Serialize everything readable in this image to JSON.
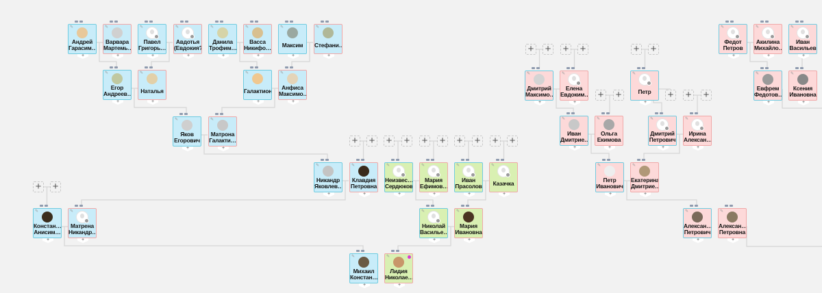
{
  "colors": {
    "male_border": "#6fcbe0",
    "female_border": "#f0a8a8",
    "bg_blue": "#c8ecf9",
    "bg_pink": "#fdd9d9",
    "bg_green": "#d9f0b2",
    "marker": "#d63ad6"
  },
  "add_label": "+",
  "people": [
    {
      "l1": "Андрей",
      "l2": "Гарасим…",
      "sex": "m",
      "bg": "blue",
      "av": "#e8c89a"
    },
    {
      "l1": "Варвара",
      "l2": "Мартемь…",
      "sex": "f",
      "bg": "blue",
      "av": "#d0d0d0"
    },
    {
      "l1": "Павел",
      "l2": "Григорь…",
      "sex": "m",
      "bg": "blue",
      "av": "silhouette"
    },
    {
      "l1": "Авдотья",
      "l2": "(Евдокия?",
      "sex": "f",
      "bg": "blue",
      "av": "silhouette"
    },
    {
      "l1": "Данила",
      "l2": "Трофим…",
      "sex": "m",
      "bg": "blue",
      "av": "#d6d4a8"
    },
    {
      "l1": "Васса",
      "l2": "Никифо…",
      "sex": "f",
      "bg": "blue",
      "av": "#d8c090"
    },
    {
      "l1": "Максим",
      "l2": "",
      "sex": "m",
      "bg": "blue",
      "av": "#9aa8a0"
    },
    {
      "l1": "Стефани…",
      "l2": "",
      "sex": "f",
      "bg": "blue",
      "av": "#b0b898"
    },
    {
      "l1": "Егор",
      "l2": "Андреев…",
      "sex": "m",
      "bg": "blue",
      "av": "#c0c8a0"
    },
    {
      "l1": "Наталья",
      "l2": "",
      "sex": "f",
      "bg": "blue",
      "av": "#e2d0a8"
    },
    {
      "l1": "Галактион",
      "l2": "",
      "sex": "m",
      "bg": "blue",
      "av": "#f0c890"
    },
    {
      "l1": "Анфиса",
      "l2": "Максимо…",
      "sex": "f",
      "bg": "blue",
      "av": "#e4d4b8"
    },
    {
      "l1": "Яков",
      "l2": "Егорович",
      "sex": "m",
      "bg": "blue",
      "av": "#cfcfcf"
    },
    {
      "l1": "Матрона",
      "l2": "Галакти…",
      "sex": "f",
      "bg": "blue",
      "av": "#c8c8c8"
    },
    {
      "l1": "Никандр",
      "l2": "Яковлев…",
      "sex": "m",
      "bg": "blue",
      "av": "#c4c4c4"
    },
    {
      "l1": "Клавдия",
      "l2": "Петровна",
      "sex": "f",
      "bg": "blue",
      "av": "#3a2a1a"
    },
    {
      "l1": "Неизвес…",
      "l2": "Сердюков",
      "sex": "m",
      "bg": "green",
      "av": "silhouette"
    },
    {
      "l1": "Мария",
      "l2": "Ефимов…",
      "sex": "f",
      "bg": "green",
      "av": "silhouette"
    },
    {
      "l1": "Иван",
      "l2": "Прасолов",
      "sex": "m",
      "bg": "green",
      "av": "silhouette"
    },
    {
      "l1": "Казачка",
      "l2": "",
      "sex": "f",
      "bg": "green",
      "av": "silhouette"
    },
    {
      "l1": "Констан…",
      "l2": "Анисим…",
      "sex": "m",
      "bg": "blue",
      "av": "#3b2e1e"
    },
    {
      "l1": "Матрена",
      "l2": "Никандр…",
      "sex": "f",
      "bg": "blue",
      "av": "silhouette"
    },
    {
      "l1": "Николай",
      "l2": "Василье…",
      "sex": "m",
      "bg": "green",
      "av": "silhouette"
    },
    {
      "l1": "Мария",
      "l2": "Ивановна",
      "sex": "f",
      "bg": "green",
      "av": "#4a3422"
    },
    {
      "l1": "Михаил",
      "l2": "Констан…",
      "sex": "m",
      "bg": "blue",
      "av": "#6a5a44"
    },
    {
      "l1": "Лидия",
      "l2": "Николае…",
      "sex": "f",
      "bg": "green",
      "av": "#c8966a",
      "marker": true
    },
    {
      "l1": "Дмитрий",
      "l2": "Максимо…",
      "sex": "m",
      "bg": "pink",
      "av": "#d4d4d4"
    },
    {
      "l1": "Елена",
      "l2": "Евдоким…",
      "sex": "f",
      "bg": "pink",
      "av": "silhouette"
    },
    {
      "l1": "Петр",
      "l2": "",
      "sex": "m",
      "bg": "pink",
      "av": "silhouette"
    },
    {
      "l1": "Иван",
      "l2": "Дмитрие…",
      "sex": "m",
      "bg": "pink",
      "av": "#c8c8c8"
    },
    {
      "l1": "Ольга",
      "l2": "Екимова",
      "sex": "f",
      "bg": "pink",
      "av": "#a8a8a8"
    },
    {
      "l1": "Дмитрий",
      "l2": "Петрович",
      "sex": "m",
      "bg": "pink",
      "av": "silhouette"
    },
    {
      "l1": "Ирина",
      "l2": "Алексан…",
      "sex": "f",
      "bg": "pink",
      "av": "silhouette"
    },
    {
      "l1": "Петр",
      "l2": "Иванович",
      "sex": "m",
      "bg": "pink",
      "av": "#eeeeee"
    },
    {
      "l1": "Екатерина",
      "l2": "Дмитрие…",
      "sex": "f",
      "bg": "pink",
      "av": "#b09878"
    },
    {
      "l1": "Федот",
      "l2": "Петров",
      "sex": "m",
      "bg": "pink",
      "av": "silhouette"
    },
    {
      "l1": "Акилина",
      "l2": "Михайло…",
      "sex": "f",
      "bg": "pink",
      "av": "silhouette"
    },
    {
      "l1": "Иван",
      "l2": "Васильев",
      "sex": "m",
      "bg": "pink",
      "av": "silhouette"
    },
    {
      "l1": "Евфрем",
      "l2": "Федотов…",
      "sex": "m",
      "bg": "pink",
      "av": "#9a9a9a"
    },
    {
      "l1": "Ксения",
      "l2": "Ивановна",
      "sex": "f",
      "bg": "pink",
      "av": "#888888"
    },
    {
      "l1": "Алексан…",
      "l2": "Петрович",
      "sex": "m",
      "bg": "pink",
      "av": "#7a6a5a"
    },
    {
      "l1": "Алексан…",
      "l2": "Петровна",
      "sex": "f",
      "bg": "pink",
      "av": "#8a7a62"
    }
  ]
}
